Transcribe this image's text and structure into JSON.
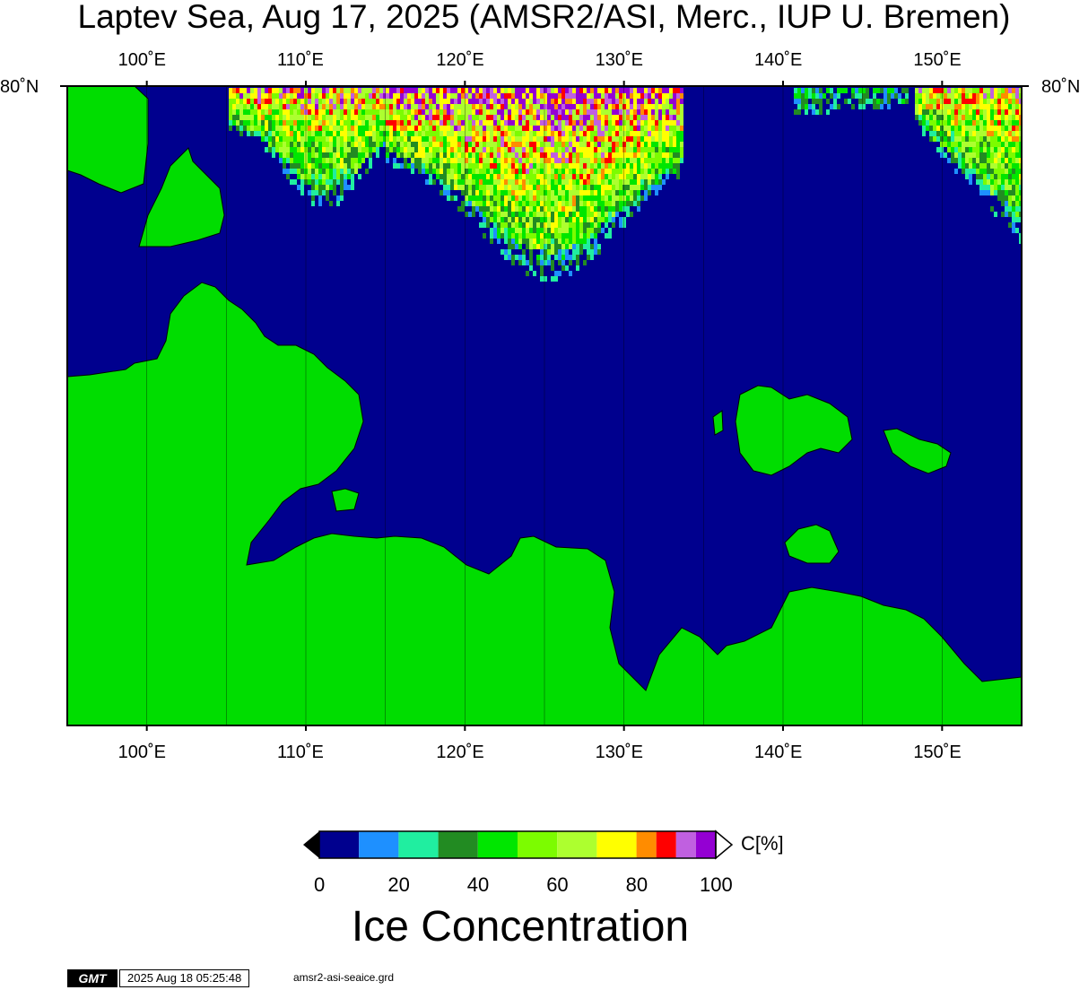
{
  "header": {
    "title": "Laptev Sea, Aug 17, 2025 (AMSR2/ASI, Merc., IUP U. Bremen)"
  },
  "map": {
    "lon_range": [
      95,
      155
    ],
    "lat_label": "80˚N",
    "lon_ticks": [
      "100˚E",
      "110˚E",
      "120˚E",
      "130˚E",
      "140˚E",
      "150˚E"
    ],
    "colors": {
      "ocean": "#00008e",
      "land": "#00dd00",
      "frame": "#000000"
    }
  },
  "colorbar": {
    "unit_label": "C[%]",
    "tick_labels": [
      "0",
      "20",
      "40",
      "60",
      "80",
      "100"
    ],
    "bins": [
      {
        "from": 0,
        "to": 10,
        "color": "#00008e"
      },
      {
        "from": 10,
        "to": 20,
        "color": "#1e90ff"
      },
      {
        "from": 20,
        "to": 30,
        "color": "#20eea0"
      },
      {
        "from": 30,
        "to": 40,
        "color": "#228b22"
      },
      {
        "from": 40,
        "to": 50,
        "color": "#00e600"
      },
      {
        "from": 50,
        "to": 60,
        "color": "#7cfc00"
      },
      {
        "from": 60,
        "to": 70,
        "color": "#adff2f"
      },
      {
        "from": 70,
        "to": 80,
        "color": "#ffff00"
      },
      {
        "from": 80,
        "to": 85,
        "color": "#ff8c00"
      },
      {
        "from": 85,
        "to": 90,
        "color": "#ff0000"
      },
      {
        "from": 90,
        "to": 95,
        "color": "#c060e0"
      },
      {
        "from": 95,
        "to": 100,
        "color": "#9400d3"
      }
    ],
    "title": "Ice Concentration"
  },
  "footer": {
    "logo": "GMT",
    "timestamp": "2025 Aug 18 05:25:48",
    "filename": "amsr2-asi-seaice.grd"
  }
}
